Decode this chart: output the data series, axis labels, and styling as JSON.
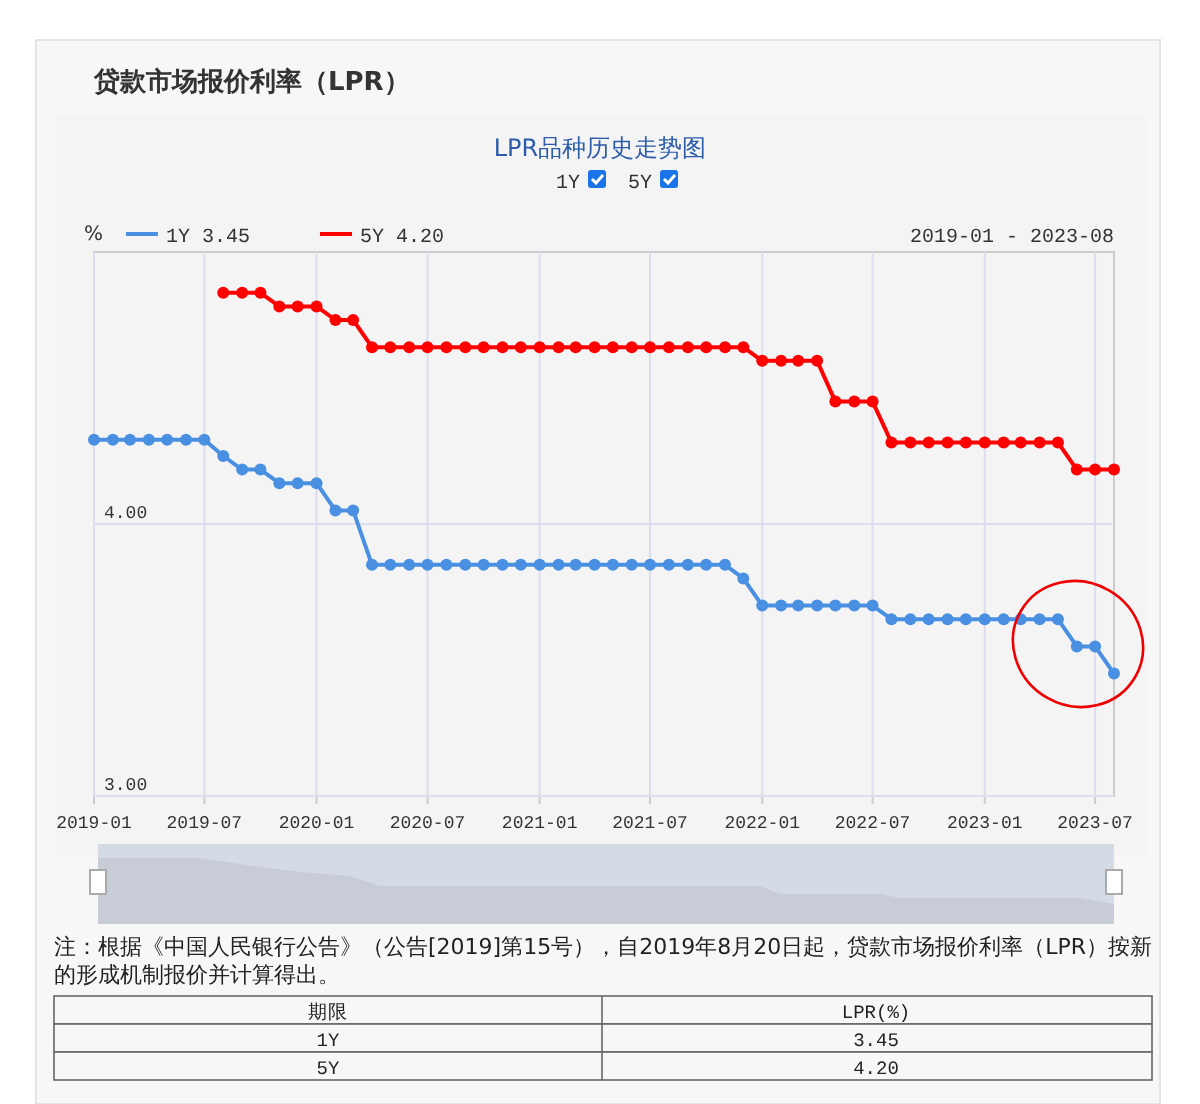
{
  "chart_data": {
    "type": "line",
    "title": "贷款市场报价利率（LPR）",
    "subtitle": "LPR品种历史走势图",
    "ylabel": "%",
    "series": [
      {
        "name": "1Y 3.45",
        "color": "#4a90e2",
        "x": [
          "2019-01",
          "2019-02",
          "2019-03",
          "2019-04",
          "2019-05",
          "2019-06",
          "2019-07",
          "2019-08",
          "2019-09",
          "2019-10",
          "2019-11",
          "2019-12",
          "2020-01",
          "2020-02",
          "2020-03",
          "2020-04",
          "2020-05",
          "2020-06",
          "2020-07",
          "2020-08",
          "2020-09",
          "2020-10",
          "2020-11",
          "2020-12",
          "2021-01",
          "2021-02",
          "2021-03",
          "2021-04",
          "2021-05",
          "2021-06",
          "2021-07",
          "2021-08",
          "2021-09",
          "2021-10",
          "2021-11",
          "2021-12",
          "2022-01",
          "2022-02",
          "2022-03",
          "2022-04",
          "2022-05",
          "2022-06",
          "2022-07",
          "2022-08",
          "2022-09",
          "2022-10",
          "2022-11",
          "2022-12",
          "2023-01",
          "2023-02",
          "2023-03",
          "2023-04",
          "2023-05",
          "2023-06",
          "2023-07",
          "2023-08"
        ],
        "values": [
          4.31,
          4.31,
          4.31,
          4.31,
          4.31,
          4.31,
          4.31,
          4.25,
          4.2,
          4.2,
          4.15,
          4.15,
          4.15,
          4.05,
          4.05,
          3.85,
          3.85,
          3.85,
          3.85,
          3.85,
          3.85,
          3.85,
          3.85,
          3.85,
          3.85,
          3.85,
          3.85,
          3.85,
          3.85,
          3.85,
          3.85,
          3.85,
          3.85,
          3.85,
          3.85,
          3.8,
          3.7,
          3.7,
          3.7,
          3.7,
          3.7,
          3.7,
          3.7,
          3.65,
          3.65,
          3.65,
          3.65,
          3.65,
          3.65,
          3.65,
          3.65,
          3.65,
          3.65,
          3.55,
          3.55,
          3.45
        ]
      },
      {
        "name": "5Y 4.20",
        "color": "#ff0000",
        "x": [
          "2019-08",
          "2019-09",
          "2019-10",
          "2019-11",
          "2019-12",
          "2020-01",
          "2020-02",
          "2020-03",
          "2020-04",
          "2020-05",
          "2020-06",
          "2020-07",
          "2020-08",
          "2020-09",
          "2020-10",
          "2020-11",
          "2020-12",
          "2021-01",
          "2021-02",
          "2021-03",
          "2021-04",
          "2021-05",
          "2021-06",
          "2021-07",
          "2021-08",
          "2021-09",
          "2021-10",
          "2021-11",
          "2021-12",
          "2022-01",
          "2022-02",
          "2022-03",
          "2022-04",
          "2022-05",
          "2022-06",
          "2022-07",
          "2022-08",
          "2022-09",
          "2022-10",
          "2022-11",
          "2022-12",
          "2023-01",
          "2023-02",
          "2023-03",
          "2023-04",
          "2023-05",
          "2023-06",
          "2023-07",
          "2023-08"
        ],
        "values": [
          4.85,
          4.85,
          4.85,
          4.8,
          4.8,
          4.8,
          4.75,
          4.75,
          4.65,
          4.65,
          4.65,
          4.65,
          4.65,
          4.65,
          4.65,
          4.65,
          4.65,
          4.65,
          4.65,
          4.65,
          4.65,
          4.65,
          4.65,
          4.65,
          4.65,
          4.65,
          4.65,
          4.65,
          4.65,
          4.6,
          4.6,
          4.6,
          4.6,
          4.45,
          4.45,
          4.45,
          4.3,
          4.3,
          4.3,
          4.3,
          4.3,
          4.3,
          4.3,
          4.3,
          4.3,
          4.3,
          4.2,
          4.2,
          4.2
        ]
      }
    ],
    "xlim": [
      "2019-01",
      "2023-08"
    ],
    "xticks": [
      "2019-01",
      "2019-07",
      "2020-01",
      "2020-07",
      "2021-01",
      "2021-07",
      "2022-01",
      "2022-07",
      "2023-01",
      "2023-07"
    ],
    "ylim": [
      3,
      5
    ],
    "yticks": [
      {
        "value": 3,
        "label": "3.00"
      },
      {
        "value": 4,
        "label": "4.00"
      }
    ],
    "grid": true,
    "legend": "top left",
    "marker": "circle",
    "line_style": "solid",
    "annotations": [
      "1Y",
      "5Y",
      "2019-01 - 2023-08",
      "注：根据《中国人民银行公告》（公告[2019]第15号），自2019年8月20日起，贷款市场报价利率（LPR）按新的形成机制报价并计算得出。",
      "期限",
      "LPR(%)",
      "1Y",
      "3.45",
      "5Y",
      "4.20"
    ]
  }
}
